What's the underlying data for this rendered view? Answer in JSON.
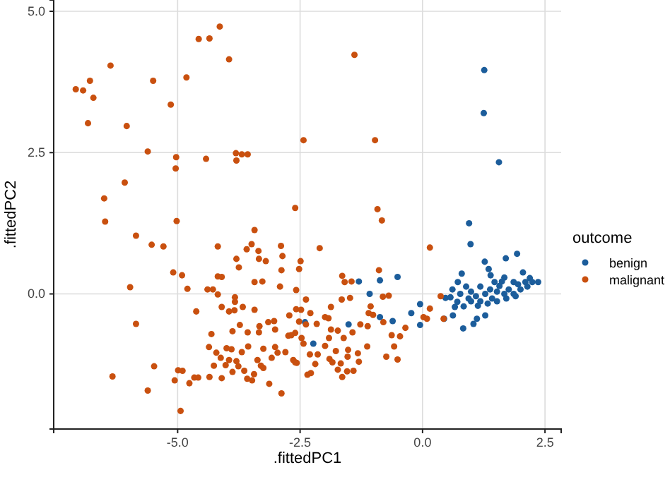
{
  "chart_data": {
    "type": "scatter",
    "xlabel": ".fittedPC1",
    "ylabel": ".fittedPC2",
    "legend_title": "outcome",
    "legend": "right",
    "grid": true,
    "marker": "circle",
    "xlim": [
      -7.53,
      2.83
    ],
    "ylim": [
      -2.39,
      5.2
    ],
    "xticks": [
      {
        "value": -5,
        "label": "-5.0"
      },
      {
        "value": -2.5,
        "label": "-2.5"
      },
      {
        "value": 0,
        "label": "0.0"
      },
      {
        "value": 2.5,
        "label": "2.5"
      }
    ],
    "yticks": [
      {
        "value": 0,
        "label": "0.0"
      },
      {
        "value": 2.5,
        "label": "2.5"
      },
      {
        "value": 5,
        "label": "5.0"
      }
    ],
    "series": [
      {
        "name": "benign",
        "color": "#1c5d9b",
        "x": [
          1.26,
          1.25,
          1.56,
          0.95,
          0.98,
          -1.3,
          -0.87,
          -0.51,
          -1.08,
          -1.51,
          -2.23,
          -2.4,
          -0.87,
          -0.61,
          -0.23,
          -0.05,
          -0.05,
          0.44,
          0.62,
          0.83,
          1.04,
          1.11,
          1.28,
          0.47,
          0.57,
          0.66,
          0.71,
          0.84,
          0.61,
          0.72,
          0.8,
          0.89,
          0.77,
          1.27,
          1.35,
          1.39,
          1.7,
          1.93,
          2.05,
          2.19,
          2.36,
          1.67,
          1.86,
          0.99,
          1.09,
          1.18,
          1.28,
          1.38,
          1.42,
          1.52,
          1.57,
          1.67,
          1.76,
          1.86,
          1.95,
          2.0,
          2.1,
          2.14,
          2.24,
          0.99,
          1.13,
          1.33,
          1.52,
          1.71,
          1.9,
          1.18,
          0.94,
          1.47,
          1.62
        ],
        "values": [
          3.96,
          3.2,
          2.33,
          1.25,
          0.88,
          0.22,
          0.24,
          0.3,
          0.0,
          -0.54,
          -0.88,
          -0.5,
          -0.41,
          -0.48,
          -0.34,
          -0.18,
          -0.55,
          -0.44,
          -0.38,
          -0.61,
          -0.53,
          -0.44,
          -0.38,
          -0.07,
          -0.06,
          -0.23,
          -0.14,
          -0.22,
          0.08,
          0.21,
          0.36,
          0.13,
          0.0,
          0.57,
          0.44,
          0.33,
          0.63,
          0.71,
          0.38,
          0.28,
          0.21,
          0.29,
          0.21,
          0.04,
          -0.04,
          -0.13,
          0.0,
          0.08,
          -0.08,
          0.04,
          0.14,
          0.0,
          0.08,
          0.0,
          0.17,
          0.08,
          0.21,
          0.13,
          0.21,
          -0.13,
          -0.21,
          -0.17,
          -0.13,
          -0.08,
          -0.04,
          0.13,
          -0.08,
          0.21,
          0.22
        ]
      },
      {
        "name": "malignant",
        "color": "#c9500f",
        "x": [
          -4.14,
          -4.57,
          -4.35,
          -3.95,
          -6.37,
          -6.79,
          -5.5,
          -4.82,
          -7.08,
          -6.93,
          -6.72,
          -5.14,
          -6.83,
          -6.04,
          -2.43,
          -5.61,
          -5.03,
          -5.04,
          -4.42,
          -3.81,
          -3.69,
          -3.57,
          -3.8,
          -6.08,
          -6.5,
          -2.6,
          -6.48,
          -5.02,
          -1.39,
          -0.97,
          -0.92,
          -0.83,
          -5.85,
          -5.53,
          -5.29,
          -4.18,
          -3.43,
          -3.59,
          -3.49,
          -3.35,
          -3.34,
          -3.2,
          -2.89,
          -2.86,
          -3.8,
          -3.75,
          -5.09,
          -4.91,
          -5.97,
          -4.8,
          -4.18,
          -4.1,
          -3.43,
          -3.27,
          -2.88,
          -2.91,
          -4.39,
          -4.28,
          -4.18,
          -3.83,
          -3.83,
          -4.1,
          -3.95,
          -3.84,
          -3.67,
          -3.43,
          -4.62,
          -5.85,
          -3.73,
          -3.88,
          -3.57,
          -3.33,
          -3.34,
          -3.15,
          -3.03,
          -3.01,
          -2.72,
          -2.58,
          -2.74,
          -2.6,
          -4.31,
          -4.36,
          -4.21,
          -4.12,
          -4.0,
          -3.9,
          -3.69,
          -3.56,
          -3.25,
          -3.01,
          -2.96,
          -2.8,
          -3.95,
          -3.8,
          -4.26,
          -4.02,
          -3.76,
          -3.37,
          -3.3,
          -3.08,
          -2.64,
          -2.57,
          -5.48,
          -4.99,
          -4.9,
          -3.88,
          -3.64,
          -3.44,
          -3.25,
          -6.33,
          -5.06,
          -4.66,
          -4.58,
          -4.35,
          -4.1,
          -3.58,
          -3.48,
          -3.13,
          -4.76,
          -5.61,
          -2.88,
          -4.94,
          -2.1,
          -2.49,
          0.15,
          -2.52,
          -1.64,
          -1.59,
          -1.45,
          -0.89,
          -2.58,
          -0.81,
          -0.69,
          -2.38,
          -1.65,
          -1.48,
          -1.06,
          -1.87,
          0.37,
          0.15,
          -2.48,
          -2.29,
          -1.99,
          -1.92,
          -1.1,
          -1.01,
          0.02,
          0.09,
          0.43,
          -0.35,
          -0.46,
          -0.63,
          -0.8,
          -1.27,
          -1.12,
          -2.52,
          -2.38,
          -2.16,
          -1.87,
          -1.73,
          -1.43,
          -1.91,
          -1.61,
          -2.68,
          -2.47,
          -2.43,
          -0.58,
          -1.13,
          -1.99,
          -1.77,
          -2.14,
          -1.52,
          -1.32,
          -0.74,
          -0.51,
          -2.3,
          -1.9,
          -1.84,
          -1.53,
          -1.3,
          -2.6,
          -2.19,
          -1.67,
          -1.73,
          -2.35,
          -2.28,
          -1.54,
          -1.41,
          -1.64
        ],
        "values": [
          4.73,
          4.51,
          4.52,
          4.15,
          4.04,
          3.77,
          3.77,
          3.83,
          3.62,
          3.6,
          3.47,
          3.35,
          3.02,
          2.97,
          2.72,
          2.52,
          2.42,
          2.22,
          2.39,
          2.49,
          2.47,
          2.47,
          2.36,
          1.97,
          1.69,
          1.52,
          1.28,
          1.29,
          4.23,
          2.72,
          1.5,
          1.3,
          1.03,
          0.87,
          0.84,
          0.84,
          1.13,
          0.79,
          0.88,
          0.76,
          0.62,
          0.58,
          0.85,
          0.67,
          0.62,
          0.47,
          0.38,
          0.33,
          0.12,
          0.09,
          0.31,
          0.3,
          0.21,
          0.22,
          0.42,
          0.13,
          0.08,
          0.08,
          -0.01,
          -0.06,
          -0.14,
          -0.23,
          -0.31,
          -0.29,
          -0.23,
          -0.28,
          -0.31,
          -0.53,
          -0.55,
          -0.66,
          -0.68,
          -0.57,
          -0.68,
          -0.5,
          -0.48,
          -0.63,
          -0.38,
          -0.27,
          -0.74,
          -0.69,
          -0.71,
          -0.94,
          -1.04,
          -1.13,
          -0.96,
          -0.98,
          -1.03,
          -0.93,
          -0.97,
          -0.94,
          -1.04,
          -1.03,
          -1.17,
          -1.19,
          -1.27,
          -1.26,
          -1.28,
          -1.17,
          -1.27,
          -1.13,
          -1.17,
          -1.22,
          -1.28,
          -1.35,
          -1.36,
          -1.38,
          -1.36,
          -1.42,
          -1.31,
          -1.46,
          -1.53,
          -1.48,
          -1.48,
          -1.47,
          -1.49,
          -1.5,
          -1.53,
          -1.59,
          -1.58,
          -1.71,
          -1.76,
          -2.07,
          0.81,
          0.58,
          0.82,
          0.44,
          0.32,
          0.21,
          0.22,
          0.42,
          0.07,
          -0.05,
          -0.03,
          -0.1,
          -0.1,
          -0.07,
          -0.22,
          -0.23,
          -0.04,
          -0.26,
          -0.28,
          -0.34,
          -0.41,
          -0.43,
          -0.34,
          -0.37,
          -0.41,
          -0.44,
          -0.44,
          -0.6,
          -0.75,
          -0.73,
          -0.5,
          -0.54,
          -0.57,
          -0.49,
          -0.54,
          -0.53,
          -0.63,
          -0.65,
          -0.68,
          -0.78,
          -0.78,
          -0.73,
          -0.78,
          -0.88,
          -0.93,
          -0.93,
          -0.92,
          -1.01,
          -1.07,
          -0.99,
          -1.05,
          -1.11,
          -1.16,
          -1.07,
          -1.15,
          -1.21,
          -1.11,
          -1.2,
          -1.21,
          -1.24,
          -1.23,
          -1.34,
          -1.43,
          -1.4,
          -1.37,
          -1.36,
          -1.47
        ]
      }
    ]
  }
}
